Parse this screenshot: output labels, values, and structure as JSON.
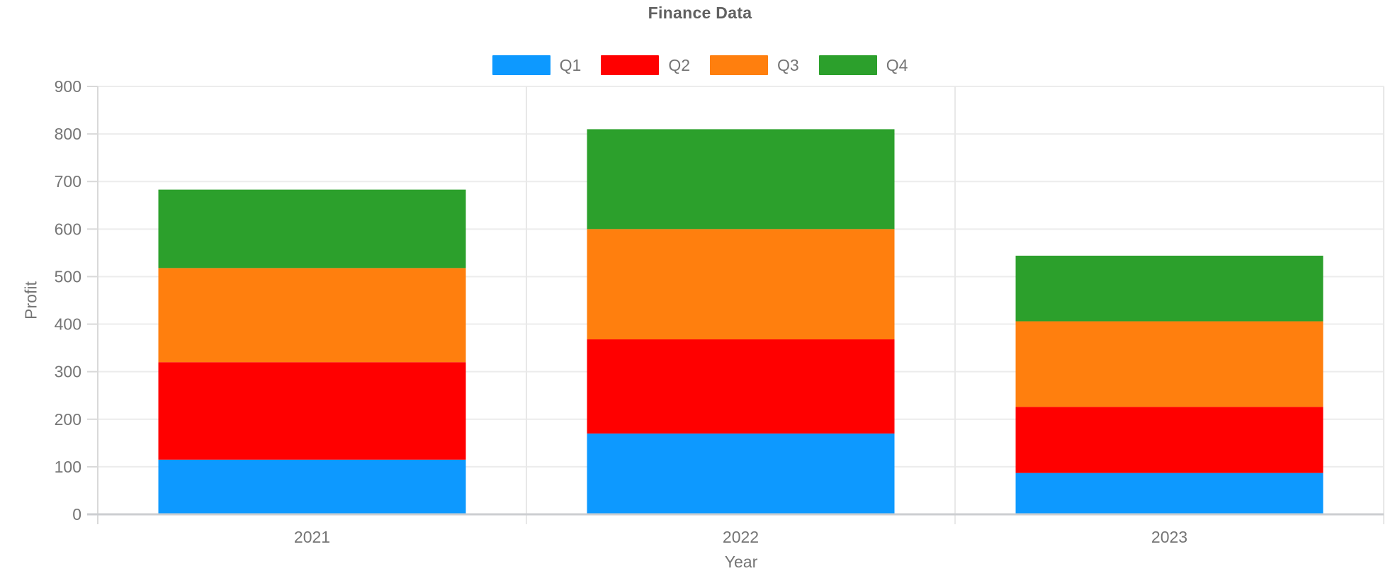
{
  "chart_data": {
    "type": "bar",
    "stacked": true,
    "title": "Finance Data",
    "xlabel": "Year",
    "ylabel": "Profit",
    "categories": [
      "2021",
      "2022",
      "2023"
    ],
    "series": [
      {
        "name": "Q1",
        "color": "#0D99FF",
        "values": [
          115,
          170,
          87
        ]
      },
      {
        "name": "Q2",
        "color": "#FF0000",
        "values": [
          205,
          198,
          139
        ]
      },
      {
        "name": "Q3",
        "color": "#FF7F0E",
        "values": [
          198,
          232,
          180
        ]
      },
      {
        "name": "Q4",
        "color": "#2CA02C",
        "values": [
          165,
          210,
          138
        ]
      }
    ],
    "stack_totals": [
      683,
      810,
      544
    ],
    "ylim": [
      0,
      900
    ],
    "ytick_step": 100,
    "yticks": [
      0,
      100,
      200,
      300,
      400,
      500,
      600,
      700,
      800,
      900
    ],
    "grid": true,
    "legend_position": "top",
    "colors": {
      "grid_line": "#ECECEC",
      "category_separator": "#E8E8E8",
      "axis_line": "#D9D9D9",
      "baseline": "#CCCED1",
      "tick_text": "#757575",
      "title_text": "#616161"
    }
  }
}
